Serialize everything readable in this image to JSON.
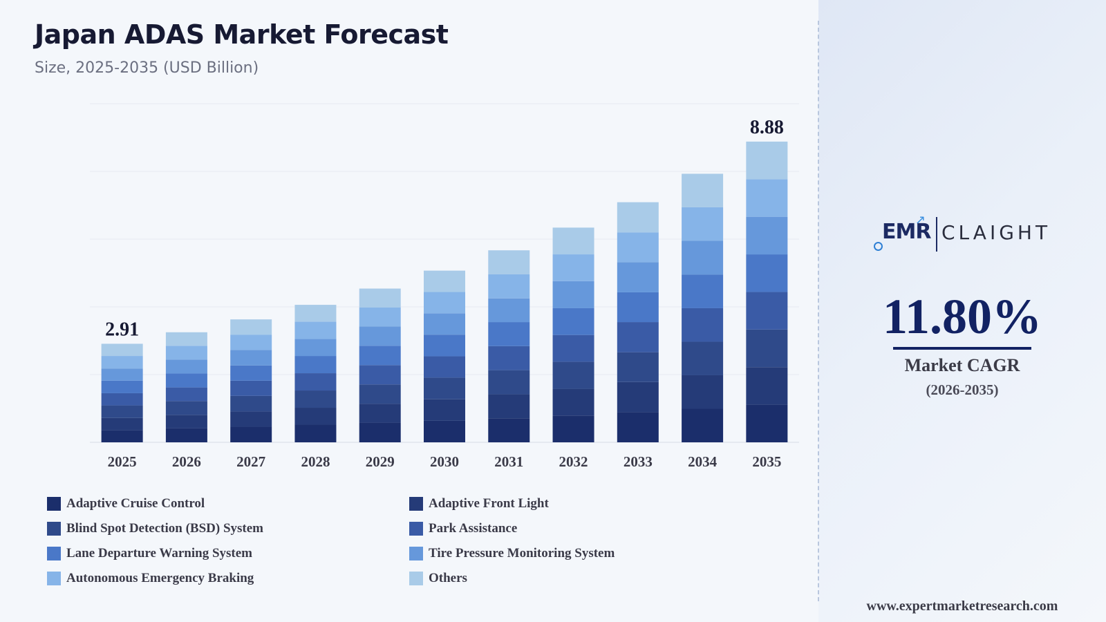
{
  "chart_data": {
    "type": "bar",
    "stacked": true,
    "title": "Japan ADAS Market Forecast",
    "subtitle": "Size, 2025-2035 (USD Billion)",
    "categories": [
      "2025",
      "2026",
      "2027",
      "2028",
      "2029",
      "2030",
      "2031",
      "2032",
      "2033",
      "2034",
      "2035"
    ],
    "totals": [
      2.91,
      3.25,
      3.63,
      4.06,
      4.54,
      5.07,
      5.67,
      6.34,
      7.09,
      7.93,
      8.88
    ],
    "total_labels": {
      "2025": "2.91",
      "2035": "8.88"
    },
    "ylim": [
      0,
      10
    ],
    "grid": true,
    "legend_position": "bottom",
    "series": [
      {
        "name": "Adaptive Cruise Control",
        "color": "#1b2e6b",
        "values": [
          0.36,
          0.41,
          0.46,
          0.52,
          0.58,
          0.64,
          0.71,
          0.79,
          0.89,
          0.99,
          1.11
        ]
      },
      {
        "name": "Adaptive Front Light",
        "color": "#253b78",
        "values": [
          0.36,
          0.4,
          0.45,
          0.5,
          0.56,
          0.63,
          0.71,
          0.79,
          0.89,
          0.99,
          1.11
        ]
      },
      {
        "name": "Blind Spot Detection (BSD) System",
        "color": "#2f4a8a",
        "values": [
          0.37,
          0.41,
          0.46,
          0.51,
          0.57,
          0.64,
          0.71,
          0.8,
          0.88,
          0.99,
          1.11
        ]
      },
      {
        "name": "Park Assistance",
        "color": "#3a5ba6",
        "values": [
          0.36,
          0.4,
          0.45,
          0.51,
          0.57,
          0.63,
          0.71,
          0.79,
          0.89,
          0.99,
          1.11
        ]
      },
      {
        "name": "Lane Departure Warning System",
        "color": "#4a78c8",
        "values": [
          0.37,
          0.41,
          0.45,
          0.51,
          0.57,
          0.64,
          0.71,
          0.79,
          0.88,
          0.99,
          1.11
        ]
      },
      {
        "name": "Tire Pressure Monitoring System",
        "color": "#6698db",
        "values": [
          0.36,
          0.41,
          0.46,
          0.5,
          0.57,
          0.63,
          0.7,
          0.8,
          0.89,
          1.0,
          1.11
        ]
      },
      {
        "name": "Autonomous Emergency Braking",
        "color": "#86b4e8",
        "values": [
          0.37,
          0.41,
          0.45,
          0.51,
          0.56,
          0.63,
          0.71,
          0.79,
          0.88,
          0.99,
          1.11
        ]
      },
      {
        "name": "Others",
        "color": "#a9cbe8",
        "values": [
          0.36,
          0.4,
          0.45,
          0.5,
          0.56,
          0.63,
          0.71,
          0.79,
          0.89,
          0.99,
          1.11
        ]
      }
    ]
  },
  "header": {
    "title": "Japan ADAS Market Forecast",
    "subtitle": "Size, 2025-2035 (USD Billion)"
  },
  "side_panel": {
    "logo_emr": "EMR",
    "logo_claight": "CLAIGHT",
    "cagr_value": "11.80%",
    "cagr_label": "Market CAGR",
    "cagr_period": "(2026-2035)",
    "website": "www.expertmarketresearch.com"
  }
}
